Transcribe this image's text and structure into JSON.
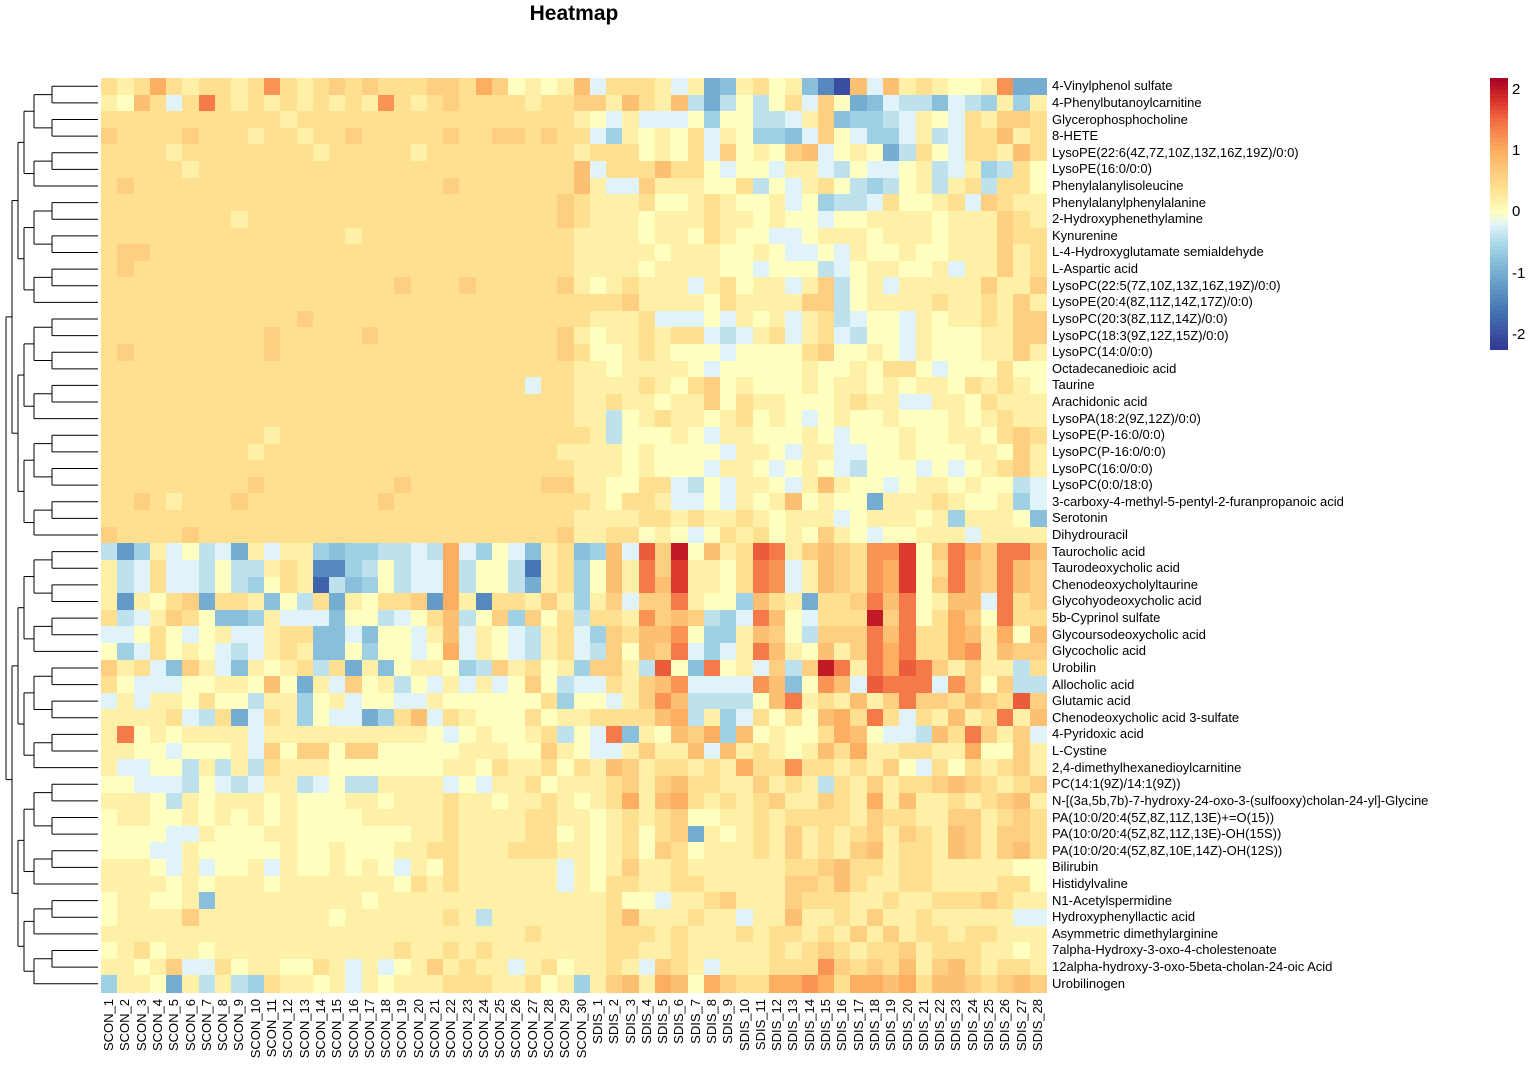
{
  "chart_data": {
    "type": "heatmap",
    "title": "Heatmap",
    "encoding": {
      "symbols": "ABCDEFGHIJKLMNOPQRSTU",
      "min": -2.0,
      "step": 0.2,
      "note": "each character is one cell value: A=-2.0, K=0, U=2.0; row strings give SCON columns, a space, then SDIS columns"
    },
    "color_range": [
      -2.25,
      2.2
    ],
    "colorbar_ticks": [
      2,
      1,
      0,
      -1,
      -2
    ],
    "colorbar_tick_labels": [
      "2",
      "1",
      "0",
      "-1",
      "-2"
    ],
    "columns": [
      "SCON_1",
      "SCON_2",
      "SCON_3",
      "SCON_4",
      "SCON_5",
      "SCON_6",
      "SCON_7",
      "SCON_8",
      "SCON_9",
      "SCON_10",
      "SCON_11",
      "SCON_12",
      "SCON_13",
      "SCON_14",
      "SCON_15",
      "SCON_16",
      "SCON_17",
      "SCON_18",
      "SCON_19",
      "SCON_20",
      "SCON_21",
      "SCON_22",
      "SCON_23",
      "SCON_24",
      "SCON_25",
      "SCON_26",
      "SCON_27",
      "SCON_28",
      "SCON_29",
      "SCON_30",
      "SDIS_1",
      "SDIS_2",
      "SDIS_3",
      "SDIS_4",
      "SDIS_5",
      "SDIS_6",
      "SDIS_7",
      "SDIS_8",
      "SDIS_9",
      "SDIS_10",
      "SDIS_11",
      "SDIS_12",
      "SDIS_13",
      "SDIS_14",
      "SDIS_15",
      "SDIS_16",
      "SDIS_17",
      "SDIS_18",
      "SDIS_19",
      "SDIS_20",
      "SDIS_21",
      "SDIS_22",
      "SDIS_23",
      "SDIS_24",
      "SDIS_25",
      "SDIS_26",
      "SDIS_27",
      "SDIS_28"
    ],
    "rows": [
      {
        "label": "4-Vinylphenol sulfate",
        "v": "MLMPMLMMLMQMLMNMNMMMNNMPNKLKLO JMMMLJLFGLMKLGDAOJOLMLKKLQFF"
      },
      {
        "label": "4-Phenylbutanoylcarnitine",
        "v": "LKOMJMRMLMLMLMLMLQMLMNMMMMLMMN NLOMLOIFIKIKMJNKFGJIIGJIHLHL"
      },
      {
        "label": "Glycerophosphocholine",
        "v": "MMMMMMMMMMMLMMMMMMMMMMMMMMMMML KJLJJJKHKKIIJLNGHHIJLKJMLNNM"
      },
      {
        "label": "8-HETE",
        "v": "NMMMMNMMMLMMLMMNMMMMMNMMNNMNMM JHLKLKMJLKHHGJNKJHHJLIJMMOLM"
      },
      {
        "label": "LysoPE(22:6(4Z,7Z,10Z,13Z,16Z,19Z)/0:0)",
        "v": "MMMMLMMMMMMMMLMMMMMLMMMMMMMMML MMMKLKMJNKLKNOJKLKFIMKJMMLOM"
      },
      {
        "label": "LysoPE(16:0/0:0)",
        "v": "MMMMMLMMMMMMMMMMMMMMMMMMMMMMMO JMMMOMMKJKKJLLJIKJJKLIJLHIMK"
      },
      {
        "label": "Phenylalanylisoleucine",
        "v": "MNMMMMMMMMMMMMMMMMMMMNMMMMMMMO LJJNLLLKKMIKJLMKIHIKLILMIMMK"
      },
      {
        "label": "Phenylalanylphenylalanine",
        "v": "MMMMMMMMMMMMMMMMMMMMMMMMMMMMNM LLLMKKLMLKKLJKHIIJMKKLMJNMLL"
      },
      {
        "label": "2-Hydroxyphenethylamine",
        "v": "MMMMMMMMLMMMMMMMMMMMMMMMMMMMNM LLLKLLLMLLKLKKJKKLLLLKLLLNML"
      },
      {
        "label": "Kynurenine",
        "v": "MMMMMMMMMMMMMMMLMMMMMMMMMMMMML LLLKLLKMLKKJJKLLLKLLLKLLLNMM"
      },
      {
        "label": "L-4-Hydroxyglutamate semialdehyde",
        "v": "MNNMMMMMMMMMMMMMMMMMMMMMMMMMML LLLLKLLLKKLKJJKJLKKLKKLLLNLM"
      },
      {
        "label": "L-Aspartic acid",
        "v": "MNMMMMMMMMMMMMMMMMMMMMMMMMMMML LLLKLLLLKKJKKKIJKLLKKLJLLNLM"
      },
      {
        "label": "LysoPC(22:5(7Z,10Z,13Z,16Z,19Z)/0:0)",
        "v": "MMMMMMMMMMMMMMMMMMNMMMNMMMMMNL KLMLLLJLMKLLJLNIKLJLLLLLNLLN"
      },
      {
        "label": "LysoPE(20:4(8Z,11Z,14Z,17Z)/0:0)",
        "v": "MMMMMMMMMMMMMMMMMMMMMMMMMMMMMM MMNLLLLKMLLLLNNIKLLLLMLLMLNL"
      },
      {
        "label": "LysoPC(20:3(8Z,11Z,14Z)/0:0)",
        "v": "MMMMMMMMMMMMNMMMMMMMMMMMMMMMMM LLLMJJJKJLKLJLMIJKKJLKLLMLNN"
      },
      {
        "label": "LysoPC(18:3(9Z,12Z,15Z)/0:0)",
        "v": "MMMMMMMMMMNMMMMMNMMMMMMMMMMMNL KLLMLMMJIJLMJLMJIKKJLKKKLLNN"
      },
      {
        "label": "LysoPC(14:0/0:0)",
        "v": "MNMMMMMMMMNMMMMMMMMMMMMMMMMMNM KKLMLKKKJKKKKMNKKLKJLKKKLLNL"
      },
      {
        "label": "Octadecanedioic acid",
        "v": "MMMMMMMMMMMMMMMMMMMMMMMMMMMMML LKLLLLKJKKKKKLKKLKMMKJKKKMKK"
      },
      {
        "label": "Taurine",
        "v": "MMMMMMMMMMMMMMMMMMMMMMMMMMJMML LLLMLKMNKLKKKLKLLKLKLLKMLMLK"
      },
      {
        "label": "Arachidonic acid",
        "v": "MMMMMMMMMMMMMMMMMMMMMMMMMMMMML LMLLKLLNKMLLKKKLMLLJJLLKMLLL"
      },
      {
        "label": "LysoPA(18:2(9Z,12Z)/0:0)",
        "v": "MMMMMMMMMMMMMMMMMMMMMMMMMMMMML LIKLMLLKLMKLKJKLKKLKKKLKLMLL"
      },
      {
        "label": "LysoPE(P-16:0/0:0)",
        "v": "MMMMMMMMMMLMMMMMMMMMMMMMMMMMMM LIKKKLKJLLKKKLKJKKKLKKLLKMNM"
      },
      {
        "label": "LysoPC(P-16:0/0:0)",
        "v": "MMMMMMMMMLMMMMMMMMMMMMMMMMMMLL LLKLKKKKJLLKJLLJJKKLKKKLLKNL"
      },
      {
        "label": "LysoPC(16:0/0:0)",
        "v": "MMMMMMMMMMMMMMMMMMMMMMMMMMMMML LLKLKKKJLLKJKLKJIKKKJKJKLMNL"
      },
      {
        "label": "LysoPC(0:0/18:0)",
        "v": "MMMMMMMMMNMMMMMMMMNMMMMMMMMNNL LKKMMJIKJLLKJLOLKKJKLLKLKKIJ"
      },
      {
        "label": "3-carboxy-4-methyl-5-pentyl-2-furanpropanoic acid",
        "v": "MMNMLMMMNMMMMMMMMNMMMMMMMMMMMM LKMMLJJKJLKLOKLKKFLLLMLKKLHJ"
      },
      {
        "label": "Serotonin",
        "v": "MMMMMMMMMMMMMMMMMMMMMMMMMMMMML LLLMMLMLLMLKLLLJKLLLKLHLLLKG"
      },
      {
        "label": "Dihydrouracil",
        "v": "NMMMMNMMMMMMMMMMMMMMMMMMMMMMNL LMMKLKJKMLMKLKNLKJKKLLLJLLLL"
      },
      {
        "label": "Taurocholic acid",
        "v": "IEHLJKIJFLJLLHGHHIIJIPJHKJGLMG HOJSNUKOLMSRLNONMQQTKNRPNRRO"
      },
      {
        "label": "Taurodeoxycholic acid",
        "v": "LIJMJJIKIILMLDDHIKIJJPIKKICLMH KOLRNTLLKMRQJLONMQPTKMRONRON"
      },
      {
        "label": "Chenodeoxycholyltaurine",
        "v": "LIJMJJIKIHKMLBIGHKIJJPIKKIFLMH KOLROTLLKMRQJLONMQPTKNRONRON"
      },
      {
        "label": "Glycohyodeoxycholic acid",
        "v": "LELKMNFMMLGKIMFLKMMNEPLDMMLNLH LNJNNRLKKHOMLFMMNRORKLOOJRMN"
      },
      {
        "label": "5b-Cyprinol sulfate",
        "v": "MIJLNMKGGHLJJJGKKIJKMOIKNHNKMI MMLQNONIHJROKJMMMUNRKMPNKRMM"
      },
      {
        "label": "Glycoursodeoxycholic acid",
        "v": "JJKMKJKLJJLMMGGJGKKJLOJLKJILMJ HNMOOQKHHLONKINNNRORMMPOLPKO"
      },
      {
        "label": "Glycocholic acid",
        "v": "KHJMKLKJIJLMLGGKHKKJKPJLKJILMJ INKONRJHJLROLKOLNRPRMMPQLONN"
      },
      {
        "label": "Urobilin",
        "v": "NLMJGNLJGLKLMIMFLGKLLKHINLMKLH NNLISKGRKLJNINURLRPSRNLNLLIM"
      },
      {
        "label": "Allocholic acid",
        "v": "MKJJJKKLLKOKFLJNKLIKJLJLJKNKIJ JMLNOQJJJJQOGKQOJSRRRJQNKNII"
      },
      {
        "label": "Glutamic acid",
        "v": "JLJLLKMKKILLHKLJKKJJLKKKKKKMHK KJLNQOIIIIKORLMLOLNRNNMONMSN"
      },
      {
        "label": "Chenodeoxycholic acid 3-sulfate",
        "v": "LLLLMJIMFJMLHKJJFHMOJMLKKKMKLL MMMMOPILHJMKMKOPMRMJMLOLMRLO"
      },
      {
        "label": "4-Pyridoxic acid",
        "v": "LRKLKLLLLJLLLLLLLLLLKJKLKKLMIK JRGLKONPHOKLKKMPOKJJIOMRNLNJ"
      },
      {
        "label": "L-Cystine",
        "v": "LLKKJKKKLJNKNNKNNKKKKKLLLKKNLK JJLNLLOJOLMLKLOMPLLMMLLPKKNL"
      },
      {
        "label": "2,4-dimethylhexanedioylcarnitine",
        "v": "LJJKKILILIMLLLKKKKKKKLLKMLLMKM LONLMMLMLPMMQMMLMLNKJMKMLMNL"
      },
      {
        "label": "PC(14:1(9Z)/14:1(9Z))",
        "v": "KKJJJIKJIJLLIJKIILLLLJKJLLMKLL LMNLNOMMLLNLMLIMLNLMMNONMLMN"
      },
      {
        "label": "N-[(3a,5b,7b)-7-hydroxy-24-oxo-3-(sulfooxy)cholan-24-yl]-Glycine",
        "v": "LLLKILKLLLKLKKKLLKLLLMLLKLLMLK LMPLOPMLMLMNLLNMLPLOLLMLMNOL"
      },
      {
        "label": "PA(10:0/20:4(5Z,8Z,11Z,13E)+=O(15))",
        "v": "KLLKKLKLKLKLKKKKLLLLLMLLLLMMLL KLMLMNKKLLMLMMMMLNMMLLNNLMNM"
      },
      {
        "label": "PA(10:0/20:4(5Z,8Z,11Z,13E)-OH(15S))",
        "v": "KKKKJJLKKKLLKKKKKKKLLMLLLLMMKL KLMKMNFLKLMLNLMLMNLNMLONLNNM"
      },
      {
        "label": "PA(10:0/20:4(5Z,8Z,10E,14Z)-OH(12S))",
        "v": "KKKJJLKKKKKLKKLKKKLLMMLLLMMMLL KLMKNMKLLLMLNLMLNOLMMLONLNOM"
      },
      {
        "label": "Bilirubin",
        "v": "LLLKJLJKKLJLKKLKLKJLKMLLLLLLJL KLNLLMLLLLLLMMNOMMLMMLLLLLKK"
      },
      {
        "label": "Histidylvaline",
        "v": "LLLLKLKLLLKLLLLLLLKMLMLLLLLLJL KMMLLMMLLLLLNNMOMLLMMLLLLMMK"
      },
      {
        "label": "N1-Acetylspermidine",
        "v": "KLLKKLGLLLLLLLLLKLLLLLLLLLLLLL LMKKJLLMNLLLNMMMLLMLLMMMNMLL"
      },
      {
        "label": "Hydroxyphenyllactic acid",
        "v": "KLLLLNLLLLLLLLKLLLLLLMLILLLLLL LMOLLLMLLJLLOLLMLNLLMLLLLLJJ"
      },
      {
        "label": "Asymmetric dimethylarginine",
        "v": "LLLLLLLLLLLLLLLLLLLLLLLLLLMLLL LMMMLMLLLMLMMLMLNLNLMMLMMLLL"
      },
      {
        "label": "7alpha-Hydroxy-3-oxo-4-cholestenoate",
        "v": "KLMKLLKLLLLLLLLLLLMLLMLMLLLLLL LMMLLMLLLLLMLMNMLMMNLMMMLLKL"
      },
      {
        "label": "12alpha-hydroxy-3-oxo-5beta-cholan-24-oic Acid",
        "v": "LLKLNJJMKLLKKMLJLJKLNLMLLJLMKL LMLJNMLJLLLMMMQNMNMOLNOMLMML"
      },
      {
        "label": "Urobilinogen",
        "v": "HLLKFLILIHMLLKLJLKLLLMMMLLMKLH LNOLPOKPNMMPPQPMPPOPMOONMNON"
      }
    ],
    "row_dendrogram": "left",
    "legend": "top-right color key"
  }
}
